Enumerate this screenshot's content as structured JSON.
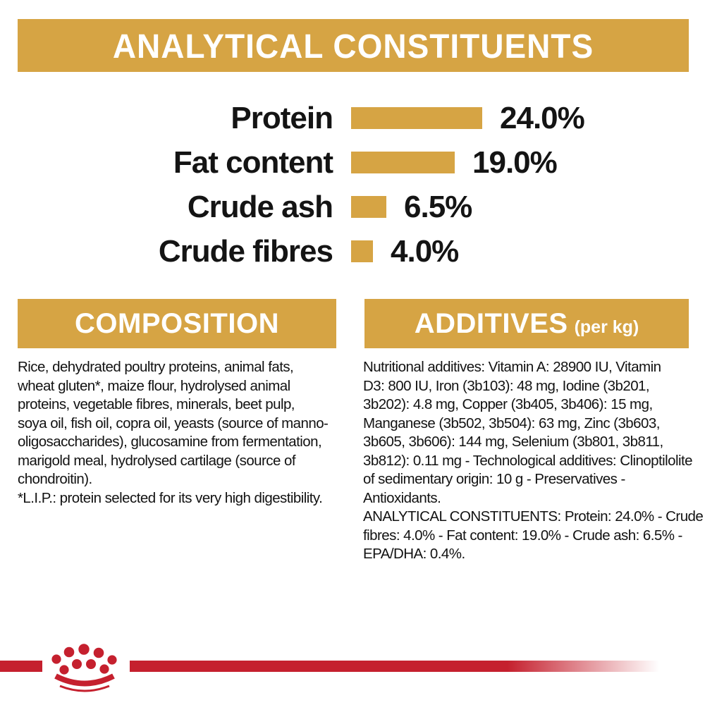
{
  "colors": {
    "gold": "#D6A444",
    "brand_red": "#C5202E",
    "text": "#121212",
    "background": "#FFFFFF"
  },
  "header": {
    "title": "ANALYTICAL CONSTITUENTS"
  },
  "chart_data": {
    "type": "bar",
    "orientation": "horizontal",
    "title": "ANALYTICAL CONSTITUENTS",
    "categories": [
      "Protein",
      "Fat content",
      "Crude ash",
      "Crude fibres"
    ],
    "values": [
      24.0,
      19.0,
      6.5,
      4.0
    ],
    "value_labels": [
      "24.0%",
      "19.0%",
      "6.5%",
      "4.0%"
    ],
    "unit": "%",
    "bar_color": "#D6A444",
    "xlim": [
      0,
      24
    ],
    "grid": false,
    "legend": false
  },
  "composition": {
    "title": "COMPOSITION",
    "body": "Rice, dehydrated poultry proteins, animal fats,\nwheat gluten*, maize flour, hydrolysed animal\nproteins, vegetable fibres, minerals, beet pulp,\nsoya oil, fish oil, copra oil, yeasts (source of manno-\noligosaccharides), glucosamine from fermentation,\nmarigold meal, hydrolysed cartilage (source of\nchondroitin).\n*L.I.P.: protein selected for its very high digestibility."
  },
  "additives": {
    "title": "ADDITIVES",
    "title_suffix": "(per kg)",
    "body": "Nutritional additives: Vitamin A: 28900 IU, Vitamin\nD3: 800 IU, Iron (3b103): 48 mg, Iodine (3b201,\n3b202): 4.8 mg, Copper (3b405, 3b406): 15 mg,\nManganese (3b502, 3b504): 63 mg, Zinc (3b603,\n3b605, 3b606): 144 mg, Selenium (3b801, 3b811,\n3b812): 0.11 mg - Technological additives: Clinoptilolite\nof sedimentary origin: 10 g - Preservatives -\nAntioxidants.\nANALYTICAL CONSTITUENTS: Protein: 24.0% - Crude\nfibres: 4.0% - Fat content: 19.0% - Crude ash: 6.5% -\nEPA/DHA: 0.4%."
  },
  "footer": {
    "logo_name": "royal-canin-crown"
  }
}
